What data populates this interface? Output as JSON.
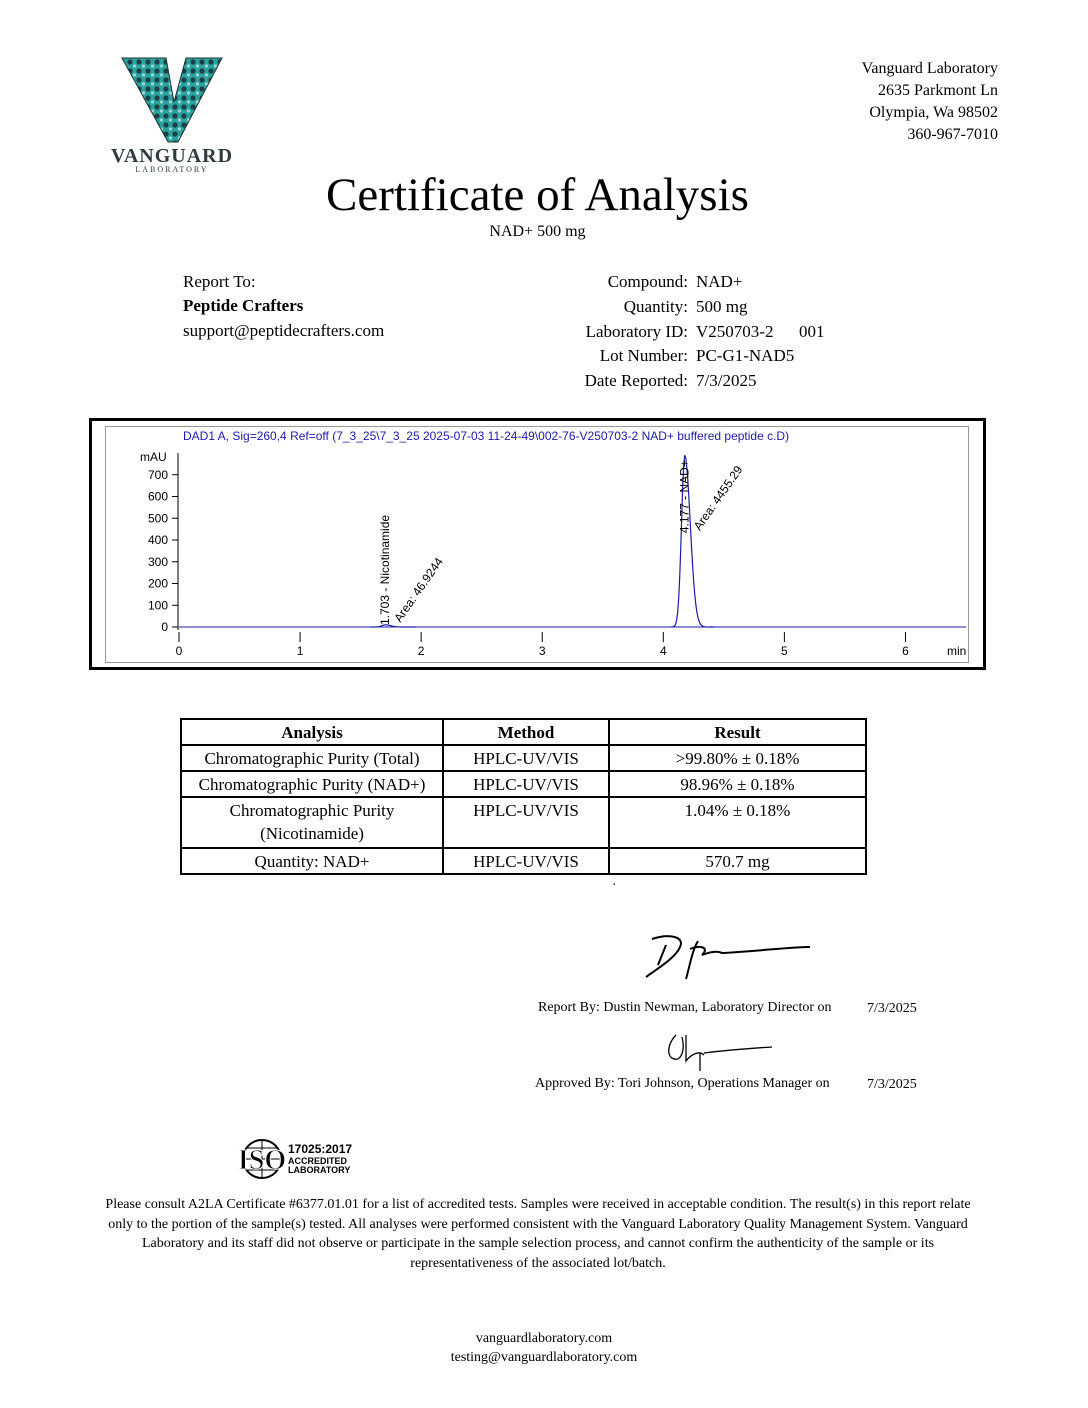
{
  "header": {
    "logo": {
      "name": "VANGUARD",
      "tagline": "LABORATORY"
    },
    "address": [
      "Vanguard Laboratory",
      "2635 Parkmont Ln",
      "Olympia, Wa 98502",
      "360-967-7010"
    ]
  },
  "title": "Certificate of Analysis",
  "subtitle": "NAD+ 500 mg",
  "report_to": {
    "label": "Report To:",
    "name": "Peptide Crafters",
    "email": "support@peptidecrafters.com"
  },
  "details": [
    {
      "label": "Compound:",
      "value": "NAD+"
    },
    {
      "label": "Quantity:",
      "value": "500 mg"
    },
    {
      "label": "Laboratory ID:",
      "value": "V250703-2      001"
    },
    {
      "label": "Lot Number:",
      "value": "PC-G1-NAD5"
    },
    {
      "label": "Date Reported:",
      "value": "7/3/2025"
    }
  ],
  "chromatogram": {
    "type": "line",
    "title": "DAD1 A, Sig=260,4 Ref=off (7_3_25\\7_3_25 2025-07-03 11-24-49\\002-76-V250703-2 NAD+ buffered peptide c.D)",
    "y_label": "mAU",
    "x_label": "min",
    "xlim": [
      0,
      6.5
    ],
    "ylim": [
      0,
      800
    ],
    "xticks": [
      0,
      1,
      2,
      3,
      4,
      5,
      6
    ],
    "yticks": [
      0,
      100,
      200,
      300,
      400,
      500,
      600,
      700
    ],
    "color": "#1c1ca8",
    "peaks": [
      {
        "rt": 1.703,
        "height": 10,
        "label": "1.703 - Nicotinamide",
        "area": "Area: 46.9244"
      },
      {
        "rt": 4.177,
        "height": 790,
        "label": "4.177 - NAD+",
        "area": "Area: 4455.29"
      }
    ]
  },
  "table": {
    "headers": [
      "Analysis",
      "Method",
      "Result"
    ],
    "rows": [
      [
        "Chromatographic Purity (Total)",
        "HPLC-UV/VIS",
        ">99.80% ± 0.18%"
      ],
      [
        "Chromatographic Purity (NAD+)",
        "HPLC-UV/VIS",
        "98.96% ± 0.18%"
      ],
      [
        "Chromatographic Purity (Nicotinamide)",
        "HPLC-UV/VIS",
        "1.04% ± 0.18%"
      ],
      [
        "Quantity: NAD+",
        "HPLC-UV/VIS",
        "570.7 mg"
      ]
    ]
  },
  "signatures": [
    {
      "text": "Report By: Dustin Newman, Laboratory Director on",
      "date": "7/3/2025"
    },
    {
      "text": "Approved By: Tori Johnson, Operations Manager on",
      "date": "7/3/2025"
    }
  ],
  "accreditation": {
    "logo": "ISO",
    "standard": "17025:2017",
    "line1": "ACCREDITED",
    "line2": "LABORATORY"
  },
  "disclaimer": "Please consult A2LA Certificate #6377.01.01 for a list of accredited tests. Samples were received in acceptable condition. The result(s) in this report relate only to the portion of the sample(s) tested. All analyses were performed consistent with the Vanguard Laboratory Quality Management System. Vanguard Laboratory and its staff did not observe or participate in the sample selection process, and cannot confirm the authenticity of the sample or its representativeness of the associated lot/batch.",
  "footer": [
    "vanguardlaboratory.com",
    "testing@vanguardlaboratory.com"
  ]
}
